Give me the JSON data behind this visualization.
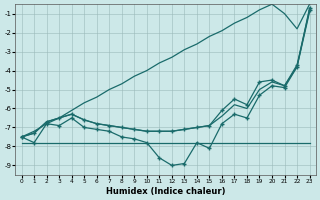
{
  "x": [
    0,
    1,
    2,
    3,
    4,
    5,
    6,
    7,
    8,
    9,
    10,
    11,
    12,
    13,
    14,
    15,
    16,
    17,
    18,
    19,
    20,
    21,
    22,
    23
  ],
  "line_diagonal": [
    -7.5,
    -7.2,
    -6.8,
    -6.5,
    -6.1,
    -5.7,
    -5.4,
    -5.0,
    -4.7,
    -4.3,
    -4.0,
    -3.6,
    -3.3,
    -2.9,
    -2.6,
    -2.2,
    -1.9,
    -1.5,
    -1.2,
    -0.8,
    -0.5,
    -1.0,
    -1.8,
    -0.5
  ],
  "line_upper": [
    -7.5,
    -7.3,
    -6.7,
    -6.5,
    -6.3,
    -6.6,
    -6.8,
    -6.9,
    -7.0,
    -7.1,
    -7.2,
    -7.2,
    -7.2,
    -7.1,
    -7.0,
    -6.9,
    -6.1,
    -5.5,
    -5.8,
    -4.6,
    -4.5,
    -4.8,
    -3.7,
    -0.8
  ],
  "line_mid": [
    -7.5,
    -7.3,
    -6.7,
    -6.5,
    -6.3,
    -6.6,
    -6.8,
    -6.9,
    -7.0,
    -7.1,
    -7.2,
    -7.2,
    -7.2,
    -7.1,
    -7.0,
    -6.9,
    -6.4,
    -5.8,
    -6.0,
    -5.0,
    -4.6,
    -4.8,
    -3.8,
    -0.9
  ],
  "line_flat": [
    -7.8,
    -7.8,
    -7.8,
    -7.8,
    -7.8,
    -7.8,
    -7.8,
    -7.8,
    -7.8,
    -7.8,
    -7.8,
    -7.8,
    -7.8,
    -7.8,
    -7.8,
    -7.8,
    -7.8,
    -7.8,
    -7.8,
    -7.8,
    -7.8,
    -7.8,
    -7.8,
    -7.8
  ],
  "line_zigzag": [
    -7.5,
    -7.8,
    -6.8,
    -6.9,
    -6.5,
    -7.0,
    -7.1,
    -7.2,
    -7.5,
    -7.6,
    -7.8,
    -8.6,
    -9.0,
    -8.9,
    -7.8,
    -8.1,
    -6.8,
    -6.3,
    -6.5,
    -5.3,
    -4.8,
    -4.9,
    -3.8,
    -0.7
  ],
  "bg_color": "#cce8e8",
  "line_color": "#1a6b6b",
  "xlabel": "Humidex (Indice chaleur)",
  "ylim": [
    -9.5,
    -0.5
  ],
  "xlim": [
    -0.5,
    23.5
  ],
  "yticks": [
    -9,
    -8,
    -7,
    -6,
    -5,
    -4,
    -3,
    -2,
    -1
  ],
  "xticks": [
    0,
    1,
    2,
    3,
    4,
    5,
    6,
    7,
    8,
    9,
    10,
    11,
    12,
    13,
    14,
    15,
    16,
    17,
    18,
    19,
    20,
    21,
    22,
    23
  ]
}
